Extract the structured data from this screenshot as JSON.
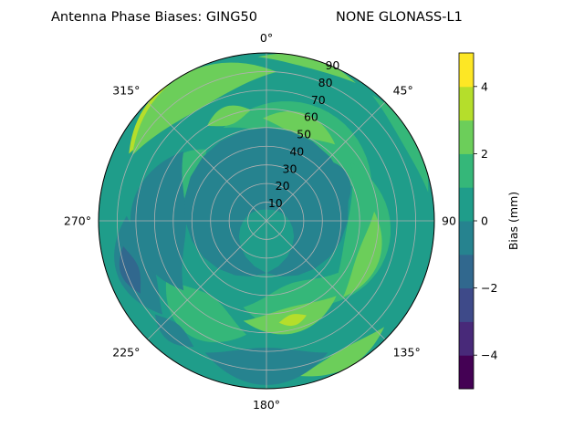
{
  "chart_data": {
    "type": "polar-contour",
    "title": "Antenna Phase Biases: GING50",
    "subtitle": "NONE GLONASS-L1",
    "angle_labels": [
      {
        "deg": 0,
        "text": "0°"
      },
      {
        "deg": 45,
        "text": "45°"
      },
      {
        "deg": 90,
        "text": "90"
      },
      {
        "deg": 135,
        "text": "135°"
      },
      {
        "deg": 180,
        "text": "180°"
      },
      {
        "deg": 225,
        "text": "225°"
      },
      {
        "deg": 270,
        "text": "270°"
      },
      {
        "deg": 315,
        "text": "315°"
      }
    ],
    "radial_ticks": [
      "10",
      "20",
      "30",
      "40",
      "50",
      "60",
      "70",
      "80",
      "90"
    ],
    "radial_range": [
      0,
      90
    ],
    "grid": true,
    "colorbar": {
      "label": "Bias (mm)",
      "range": [
        -5,
        5
      ],
      "ticks": [
        "−4",
        "−2",
        "0",
        "2",
        "4"
      ],
      "levels": [
        -5,
        -4,
        -3,
        -2,
        -1,
        0,
        1,
        2,
        3,
        4,
        5
      ],
      "colors": [
        "#440154",
        "#482979",
        "#3e4a89",
        "#31688e",
        "#26838f",
        "#1f9d8a",
        "#35b779",
        "#6cce5a",
        "#b5de2b",
        "#fde725"
      ]
    },
    "regions": [
      {
        "level": 3,
        "az": 320,
        "r": 82,
        "half_width_deg": 24,
        "radial_half": 8
      },
      {
        "level": 2,
        "az": 330,
        "r": 80,
        "half_width_deg": 34,
        "radial_half": 10
      },
      {
        "level": 2,
        "az": 15,
        "r": 88,
        "half_width_deg": 18,
        "radial_half": 3
      },
      {
        "level": 1,
        "az": 60,
        "r": 88,
        "half_width_deg": 20,
        "radial_half": 4
      },
      {
        "level": 1,
        "az": 30,
        "r": 55,
        "half_width_deg": 55,
        "radial_half": 12
      },
      {
        "level": 2,
        "az": 20,
        "r": 55,
        "half_width_deg": 22,
        "radial_half": 6
      },
      {
        "level": 2,
        "az": 340,
        "r": 60,
        "half_width_deg": 12,
        "radial_half": 5
      },
      {
        "level": 1,
        "az": 300,
        "r": 50,
        "half_width_deg": 20,
        "radial_half": 10
      },
      {
        "level": 1,
        "az": 100,
        "r": 55,
        "half_width_deg": 45,
        "radial_half": 12
      },
      {
        "level": 2,
        "az": 110,
        "r": 58,
        "half_width_deg": 25,
        "radial_half": 6
      },
      {
        "level": 1,
        "az": 160,
        "r": 48,
        "half_width_deg": 35,
        "radial_half": 12
      },
      {
        "level": 2,
        "az": 165,
        "r": 55,
        "half_width_deg": 28,
        "radial_half": 7
      },
      {
        "level": 3,
        "az": 165,
        "r": 55,
        "half_width_deg": 8,
        "radial_half": 3
      },
      {
        "level": 2,
        "az": 150,
        "r": 85,
        "half_width_deg": 18,
        "radial_half": 5
      },
      {
        "level": 1,
        "az": 215,
        "r": 62,
        "half_width_deg": 25,
        "radial_half": 12
      },
      {
        "level": -1,
        "az": 250,
        "r": 75,
        "half_width_deg": 22,
        "radial_half": 10
      },
      {
        "level": -2,
        "az": 250,
        "r": 78,
        "half_width_deg": 10,
        "radial_half": 5
      },
      {
        "level": -1,
        "az": 220,
        "r": 78,
        "half_width_deg": 10,
        "radial_half": 5
      },
      {
        "level": -1,
        "az": 270,
        "r": 58,
        "half_width_deg": 40,
        "radial_half": 15
      },
      {
        "level": -2,
        "az": 250,
        "r": 30,
        "half_width_deg": 10,
        "radial_half": 4
      },
      {
        "level": -1,
        "az": 0,
        "r": 28,
        "half_width_deg": 180,
        "radial_half": 22
      },
      {
        "level": -1,
        "az": 60,
        "r": 40,
        "half_width_deg": 25,
        "radial_half": 10
      },
      {
        "level": -1,
        "az": 180,
        "r": 78,
        "half_width_deg": 25,
        "radial_half": 10
      }
    ]
  }
}
